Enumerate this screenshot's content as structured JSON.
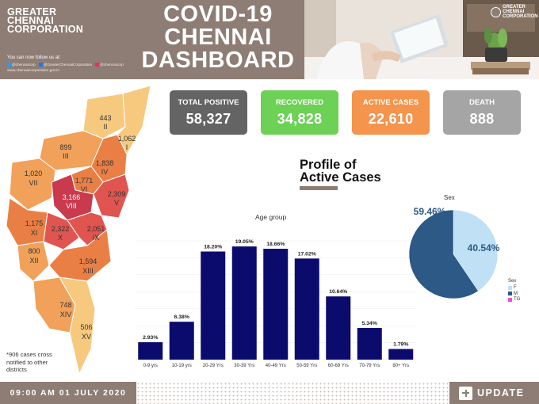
{
  "header": {
    "org_name": "GREATER CHENNAI CORPORATION",
    "title": "COVID-19 CHENNAI DASHBOARD",
    "follow_text": "You can now follow us at:",
    "social": [
      {
        "icon": "twitter-icon",
        "handle": "@chennaicorp",
        "color": "#1da1f2"
      },
      {
        "icon": "facebook-icon",
        "handle": "@GreaterChennaiCorporation",
        "color": "#1877f2"
      },
      {
        "icon": "instagram-icon",
        "handle": "@chennaicorp",
        "color": "#e1306c"
      }
    ],
    "website": "www.chennaicorporation.gov.in",
    "logo_text": "GREATER CHENNAI CORPORATION"
  },
  "stats": {
    "total": {
      "label": "TOTAL POSITIVE",
      "value": "58,327",
      "color": "#646464"
    },
    "recovered": {
      "label": "RECOVERED",
      "value": "34,828",
      "color": "#6cd155"
    },
    "active": {
      "label": "ACTIVE CASES",
      "value": "22,610",
      "color": "#f5944c"
    },
    "death": {
      "label": "DEATH",
      "value": "888",
      "color": "#a5a5a5"
    }
  },
  "profile_title": "Profile of Active Cases",
  "map": {
    "zones": [
      {
        "count": "443",
        "roman": "II",
        "color": "#f7c97e"
      },
      {
        "count": "1,062",
        "roman": "I",
        "color": "#f7c97e"
      },
      {
        "count": "899",
        "roman": "III",
        "color": "#f1a15a"
      },
      {
        "count": "1,838",
        "roman": "IV",
        "color": "#ea7f45"
      },
      {
        "count": "1,020",
        "roman": "VII",
        "color": "#f1a15a"
      },
      {
        "count": "1,771",
        "roman": "VI",
        "color": "#ea7f45"
      },
      {
        "count": "3,166",
        "roman": "VIII",
        "color": "#c93a4e"
      },
      {
        "count": "2,309",
        "roman": "V",
        "color": "#e05550"
      },
      {
        "count": "1,175",
        "roman": "XI",
        "color": "#ea7f45"
      },
      {
        "count": "2,322",
        "roman": "X",
        "color": "#e05550"
      },
      {
        "count": "2,051",
        "roman": "IX",
        "color": "#e05550"
      },
      {
        "count": "800",
        "roman": "XII",
        "color": "#f1a15a"
      },
      {
        "count": "1,594",
        "roman": "XIII",
        "color": "#ea7f45"
      },
      {
        "count": "748",
        "roman": "XIV",
        "color": "#f1a15a"
      },
      {
        "count": "506",
        "roman": "XV",
        "color": "#f7c97e"
      }
    ],
    "footnote": "*906 cases cross notified to other districts"
  },
  "chart_data": [
    {
      "type": "bar",
      "title": "Age group",
      "categories": [
        "0-9 yrs",
        "10-19 yrs",
        "20-29 Yrs",
        "30-39 Yrs",
        "40-49 Yrs",
        "50-59 Yrs",
        "60-69 Yrs",
        "70-79 Yrs",
        "80+ Yrs"
      ],
      "values": [
        2.93,
        6.38,
        18.2,
        19.05,
        18.66,
        17.02,
        10.64,
        5.34,
        1.79
      ],
      "labels": [
        "2.93%",
        "6.38%",
        "18.20%",
        "19.05%",
        "18.66%",
        "17.02%",
        "10.64%",
        "5.34%",
        "1.79%"
      ],
      "bar_color": "#0b0b6e",
      "ylim": [
        0,
        20
      ]
    },
    {
      "type": "pie",
      "title": "Sex",
      "slices": [
        {
          "name": "F",
          "value": 40.54,
          "label": "40.54%",
          "color": "#bfe0f5"
        },
        {
          "name": "M",
          "value": 59.46,
          "label": "59.46%",
          "color": "#2c5985"
        },
        {
          "name": "TG",
          "value": 0,
          "label": "",
          "color": "#ef4fd6"
        }
      ],
      "legend_title": "Sex"
    }
  ],
  "footer": {
    "timestamp": "09:00 AM 01 JULY 2020",
    "update_label": "UPDATE"
  }
}
